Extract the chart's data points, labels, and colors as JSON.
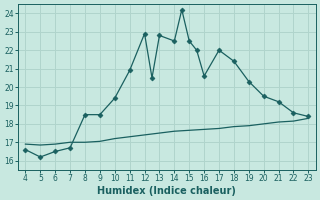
{
  "title": "",
  "xlabel": "Humidex (Indice chaleur)",
  "background_color": "#c8e8e0",
  "grid_color": "#b0d4cc",
  "line_color": "#1a6060",
  "xlim": [
    3.5,
    23.5
  ],
  "ylim": [
    15.5,
    24.5
  ],
  "xticks": [
    4,
    5,
    6,
    7,
    8,
    9,
    10,
    11,
    12,
    13,
    14,
    15,
    16,
    17,
    18,
    19,
    20,
    21,
    22,
    23
  ],
  "yticks": [
    16,
    17,
    18,
    19,
    20,
    21,
    22,
    23,
    24
  ],
  "curve1_x": [
    4,
    5,
    6,
    7,
    8,
    9,
    10,
    11,
    12,
    12.5,
    13,
    14,
    14.5,
    15,
    15.5,
    16,
    17,
    18,
    19,
    20,
    21,
    22,
    23
  ],
  "curve1_y": [
    16.6,
    16.2,
    16.5,
    16.7,
    18.5,
    18.5,
    19.4,
    20.9,
    22.9,
    20.5,
    22.8,
    22.5,
    24.2,
    22.5,
    22.0,
    20.6,
    22.0,
    21.4,
    20.3,
    19.5,
    19.2,
    18.6,
    18.4
  ],
  "curve2_x": [
    4,
    5,
    6,
    7,
    8,
    9,
    10,
    11,
    12,
    13,
    14,
    15,
    16,
    17,
    18,
    19,
    20,
    21,
    22,
    23
  ],
  "curve2_y": [
    16.9,
    16.85,
    16.9,
    17.0,
    17.0,
    17.05,
    17.2,
    17.3,
    17.4,
    17.5,
    17.6,
    17.65,
    17.7,
    17.75,
    17.85,
    17.9,
    18.0,
    18.1,
    18.15,
    18.3
  ],
  "marker": "D",
  "markersize": 2.5,
  "linewidth": 0.9
}
